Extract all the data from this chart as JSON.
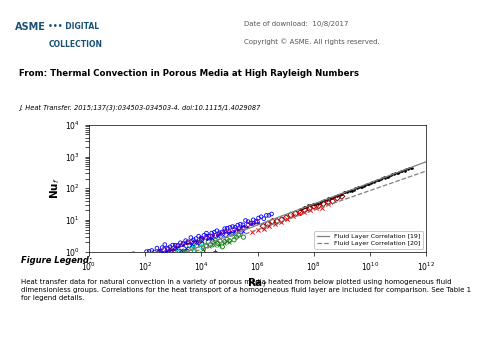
{
  "title_header": "From: Thermal Convection in Porous Media at High Rayleigh Numbers",
  "subtitle": "J. Heat Transfer. 2015;137(3):034503-034503-4. doi:10.1115/1.4029087",
  "asme_date": "Date of download:  10/8/2017",
  "asme_copy": "Copyright © ASME. All rights reserved.",
  "xlabel": "Ra$_f$",
  "ylabel": "Nu$_f$",
  "xmin": 1.0,
  "xmax": 1000000000000.0,
  "ymin": 1.0,
  "ymax": 10000.0,
  "legend1": "Fluid Layer Correlation [19]",
  "legend2": "Fluid Layer Correlation [20]",
  "fig_legend_title": "Figure Legend:",
  "fig_legend_text": "Heat transfer data for natural convection in a variety of porous media heated from below plotted using homogeneous fluid\ndimensionless groups. Correlations for the heat transport of a homogeneous fluid layer are included for comparison. See Table 1\nfor legend details.",
  "background_color": "#f2f2f2",
  "plot_bg": "#ffffff",
  "header_bg": "#e8e8e8",
  "title_bg": "#e2e2e2"
}
